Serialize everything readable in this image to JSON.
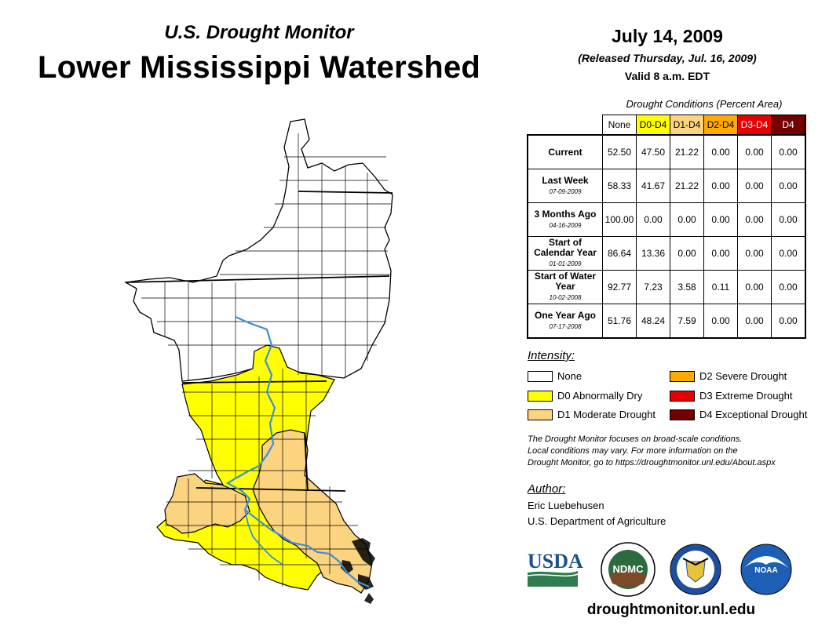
{
  "header": {
    "subtitle": "U.S. Drought Monitor",
    "title": "Lower Mississippi Watershed",
    "date": "July 14, 2009",
    "released": "(Released Thursday, Jul. 16, 2009)",
    "valid": "Valid 8 a.m. EDT"
  },
  "table": {
    "caption": "Drought Conditions (Percent Area)",
    "columns": [
      {
        "label": "None",
        "color": "#ffffff",
        "text_color": "#000000"
      },
      {
        "label": "D0-D4",
        "color": "#ffff00",
        "text_color": "#000000"
      },
      {
        "label": "D1-D4",
        "color": "#fcd37f",
        "text_color": "#000000"
      },
      {
        "label": "D2-D4",
        "color": "#ffaa00",
        "text_color": "#000000"
      },
      {
        "label": "D3-D4",
        "color": "#e60000",
        "text_color": "#ffffff"
      },
      {
        "label": "D4",
        "color": "#730000",
        "text_color": "#ffffff"
      }
    ],
    "rows": [
      {
        "label": "Current",
        "date": "",
        "values": [
          "52.50",
          "47.50",
          "21.22",
          "0.00",
          "0.00",
          "0.00"
        ]
      },
      {
        "label": "Last Week",
        "date": "07-09-2009",
        "values": [
          "58.33",
          "41.67",
          "21.22",
          "0.00",
          "0.00",
          "0.00"
        ]
      },
      {
        "label": "3 Months Ago",
        "date": "04-16-2009",
        "values": [
          "100.00",
          "0.00",
          "0.00",
          "0.00",
          "0.00",
          "0.00"
        ]
      },
      {
        "label": "Start of Calendar Year",
        "date": "01-01-2009",
        "values": [
          "86.64",
          "13.36",
          "0.00",
          "0.00",
          "0.00",
          "0.00"
        ]
      },
      {
        "label": "Start of Water Year",
        "date": "10-02-2008",
        "values": [
          "92.77",
          "7.23",
          "3.58",
          "0.11",
          "0.00",
          "0.00"
        ]
      },
      {
        "label": "One Year Ago",
        "date": "07-17-2008",
        "values": [
          "51.76",
          "48.24",
          "7.59",
          "0.00",
          "0.00",
          "0.00"
        ]
      }
    ]
  },
  "legend": {
    "heading": "Intensity:",
    "items": [
      {
        "label": "None",
        "color": "#ffffff"
      },
      {
        "label": "D0 Abnormally Dry",
        "color": "#ffff00"
      },
      {
        "label": "D1 Moderate Drought",
        "color": "#fcd37f"
      },
      {
        "label": "D2 Severe Drought",
        "color": "#ffaa00"
      },
      {
        "label": "D3 Extreme Drought",
        "color": "#e60000"
      },
      {
        "label": "D4 Exceptional Drought",
        "color": "#730000"
      }
    ]
  },
  "disclaimer": {
    "line1": "The Drought Monitor focuses on broad-scale conditions.",
    "line2": "Local conditions may vary. For more information on the",
    "line3": "Drought Monitor, go to https://droughtmonitor.unl.edu/About.aspx"
  },
  "author": {
    "heading": "Author:",
    "name": "Eric Luebehusen",
    "org": "U.S. Department of Agriculture"
  },
  "logos": {
    "usda": "USDA",
    "ndmc": "NDMC",
    "noaa": "NOAA"
  },
  "footer": {
    "url": "droughtmonitor.unl.edu"
  },
  "colors": {
    "river": "#3d8fd6",
    "none": "#ffffff",
    "d0": "#ffff00",
    "d1": "#fcd37f"
  }
}
